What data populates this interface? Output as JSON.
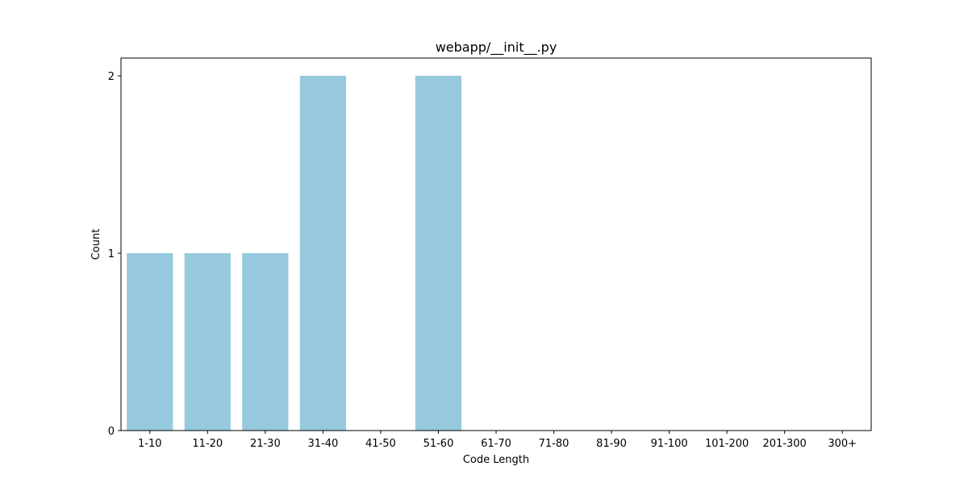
{
  "chart_data": {
    "type": "bar",
    "title": "webapp/__init__.py",
    "xlabel": "Code Length",
    "ylabel": "Count",
    "categories": [
      "1-10",
      "11-20",
      "21-30",
      "31-40",
      "41-50",
      "51-60",
      "61-70",
      "71-80",
      "81-90",
      "91-100",
      "101-200",
      "201-300",
      "300+"
    ],
    "values": [
      1,
      1,
      1,
      2,
      0,
      2,
      0,
      0,
      0,
      0,
      0,
      0,
      0
    ],
    "ylim": [
      0,
      2.1
    ],
    "yticks": [
      0,
      1,
      2
    ],
    "grid": false,
    "legend": "none",
    "bar_color": "#96c9de",
    "axis_color": "#000000"
  }
}
